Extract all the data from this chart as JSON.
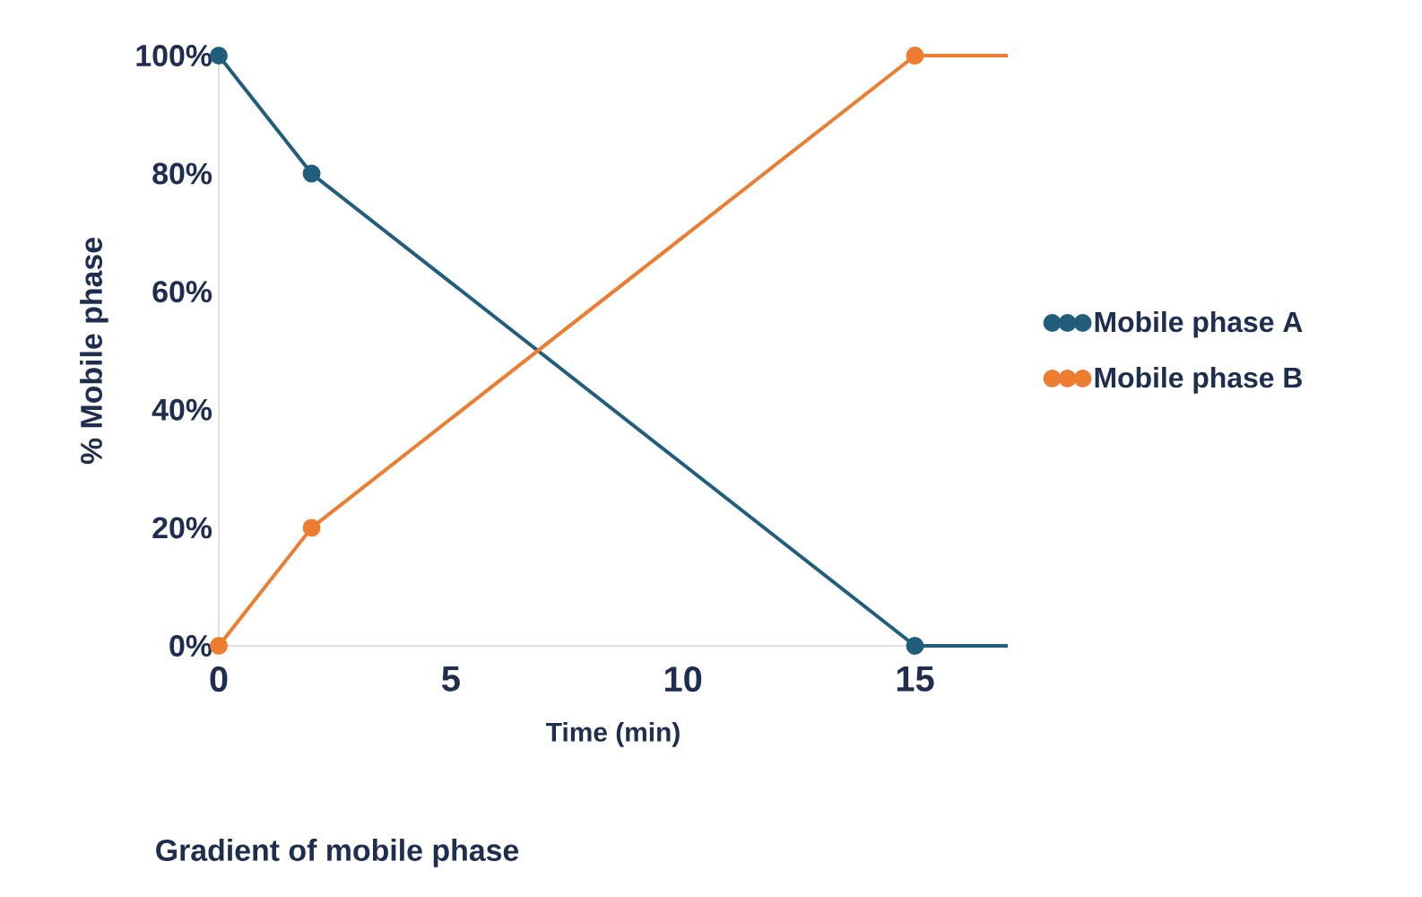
{
  "chart_data": {
    "type": "line",
    "title": "Gradient of mobile phase",
    "xlabel": "Time (min)",
    "ylabel": "% Mobile phase",
    "series": [
      {
        "name": "Mobile phase A",
        "color": "#215e7c",
        "x": [
          0,
          2,
          15,
          17
        ],
        "values": [
          100,
          80,
          0,
          0
        ]
      },
      {
        "name": "Mobile phase B",
        "color": "#ed7d31",
        "x": [
          0,
          2,
          15,
          17
        ],
        "values": [
          0,
          20,
          100,
          100
        ]
      }
    ],
    "xlim": [
      0,
      17
    ],
    "ylim": [
      0,
      100
    ],
    "xticks": [
      0,
      5,
      10,
      15
    ],
    "yticks": [
      {
        "value": 0,
        "label": "0%"
      },
      {
        "value": 20,
        "label": "20%"
      },
      {
        "value": 40,
        "label": "40%"
      },
      {
        "value": 60,
        "label": "60%"
      },
      {
        "value": 80,
        "label": "80%"
      },
      {
        "value": 100,
        "label": "100%"
      }
    ],
    "grid": false,
    "legend": "right",
    "marker": "circle",
    "line_style": "solid"
  }
}
